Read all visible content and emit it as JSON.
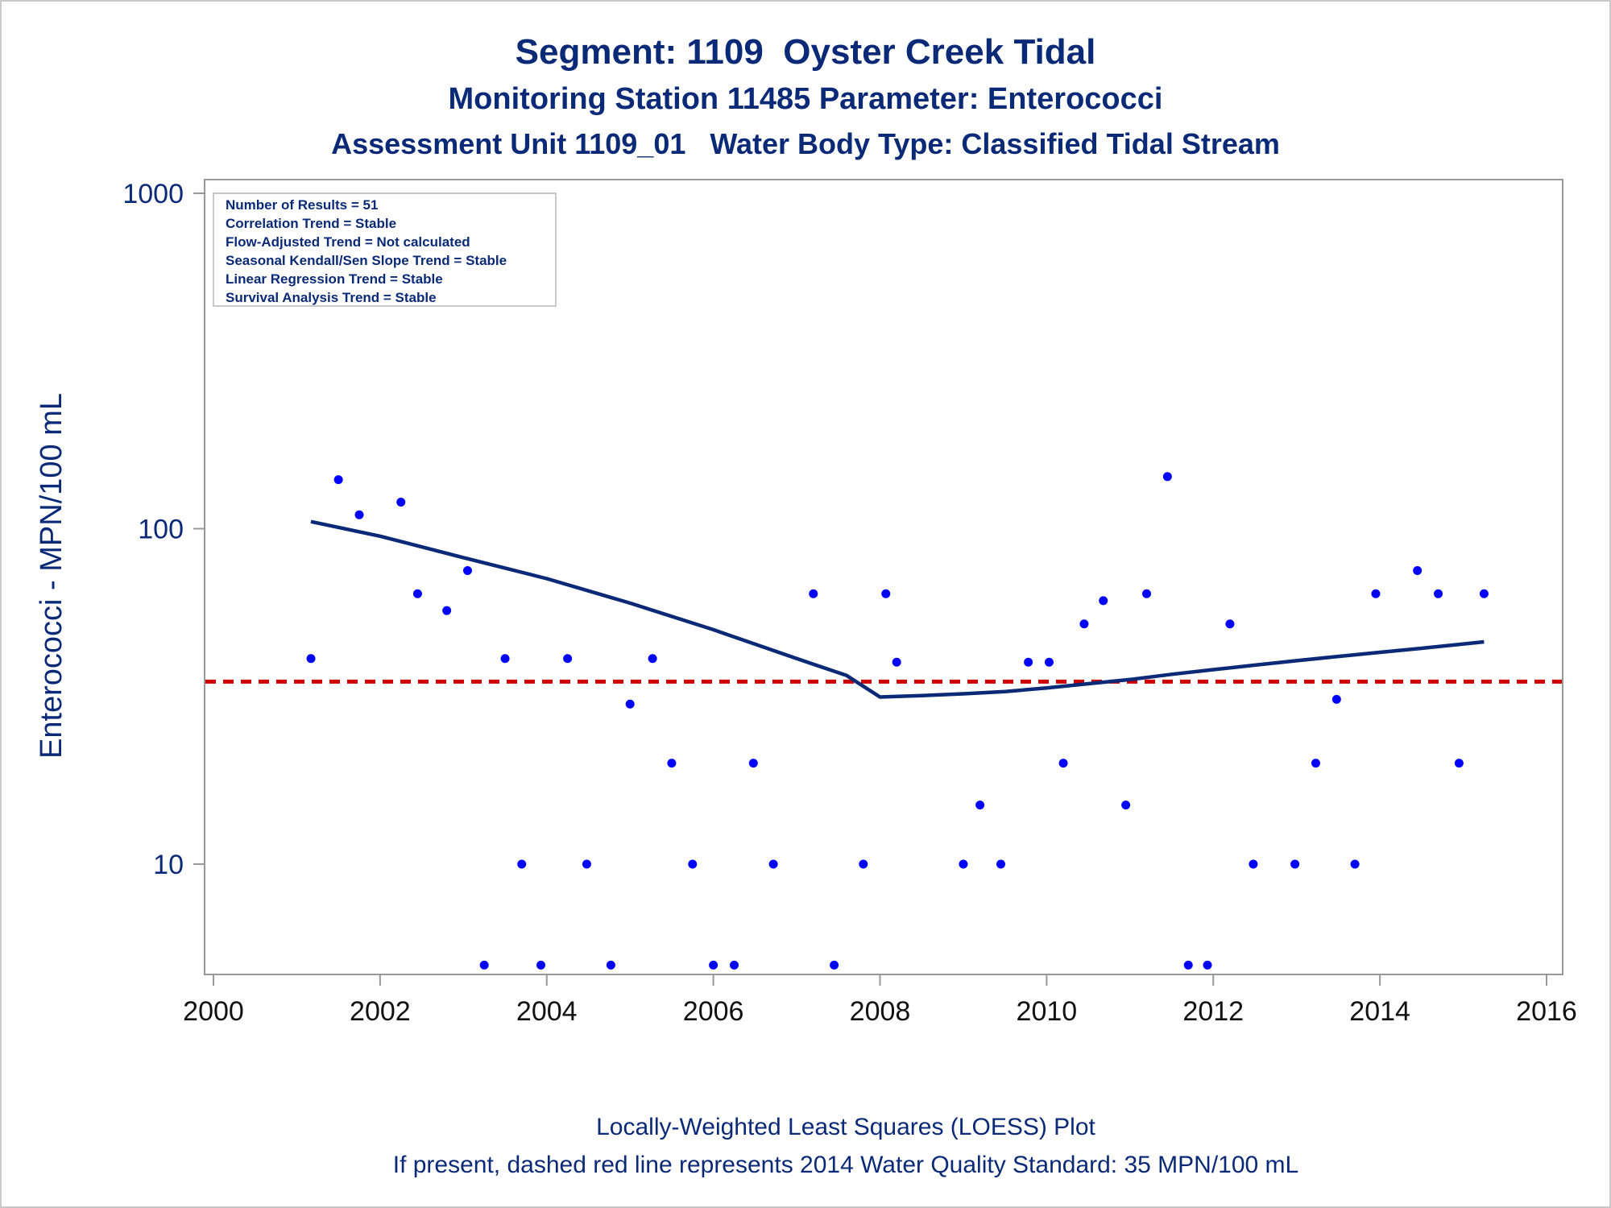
{
  "header": {
    "title": "Segment: 1109  Oyster Creek Tidal",
    "subtitle": "Monitoring Station 11485 Parameter: Enterococci",
    "subtitle2": "Assessment Unit 1109_01   Water Body Type: Classified Tidal Stream"
  },
  "stats_box": {
    "lines": [
      "Number of Results = 51",
      "Correlation Trend = Stable",
      "Flow-Adjusted Trend = Not calculated",
      "Seasonal Kendall/Sen Slope Trend = Stable",
      "Linear Regression Trend = Stable",
      "Survival Analysis Trend = Stable"
    ]
  },
  "footer": {
    "line1": "Locally-Weighted Least Squares (LOESS) Plot",
    "line2": "If present, dashed red line represents 2014 Water Quality Standard: 35 MPN/100 mL"
  },
  "colors": {
    "text": "#0a2a78",
    "points": "#0000ff",
    "loess": "#0a2a78",
    "standard": "#cc0000",
    "axis": "#999999"
  },
  "chart_data": {
    "type": "scatter",
    "title": "Segment: 1109  Oyster Creek Tidal",
    "ylabel": "Enterococci - MPN/100 mL",
    "xlabel": "",
    "y_scale": "log10",
    "xlim": [
      2000,
      2016
    ],
    "ylim": [
      5,
      1000
    ],
    "x_ticks": [
      2000,
      2002,
      2004,
      2006,
      2008,
      2010,
      2012,
      2014,
      2016
    ],
    "y_ticks": [
      10,
      100,
      1000
    ],
    "y_tick_labels": [
      "10",
      "100",
      "1000"
    ],
    "grid": false,
    "series": [
      {
        "type": "scatter",
        "x": [
          2001.17,
          2001.5,
          2001.75,
          2002.25,
          2002.45,
          2002.8,
          2003.05,
          2003.25,
          2003.5,
          2003.7,
          2003.93,
          2004.25,
          2004.48,
          2004.77,
          2005.0,
          2005.27,
          2005.5,
          2005.75,
          2006.0,
          2006.25,
          2006.48,
          2006.72,
          2007.2,
          2007.45,
          2007.8,
          2008.07,
          2008.2,
          2009.0,
          2009.2,
          2009.45,
          2009.78,
          2010.03,
          2010.2,
          2010.45,
          2010.68,
          2010.95,
          2011.2,
          2011.45,
          2011.7,
          2011.93,
          2012.2,
          2012.48,
          2012.98,
          2013.23,
          2013.48,
          2013.7,
          2013.95,
          2014.45,
          2014.7,
          2014.95,
          2015.25
        ],
        "y": [
          41,
          140,
          110,
          120,
          64,
          57,
          75,
          5,
          41,
          10,
          5,
          41,
          10,
          5,
          30,
          41,
          20,
          10,
          5,
          5,
          20,
          10,
          64,
          5,
          10,
          64,
          40,
          10,
          15,
          10,
          40,
          40,
          20,
          52,
          61,
          15,
          64,
          143,
          5,
          5,
          52,
          10,
          10,
          20,
          31,
          10,
          64,
          75,
          64,
          20,
          64
        ]
      },
      {
        "type": "line",
        "x": [
          2001.17,
          2002.0,
          2003.0,
          2004.0,
          2005.0,
          2006.0,
          2007.0,
          2007.6,
          2008.0,
          2008.5,
          2009.0,
          2009.5,
          2010.0,
          2010.5,
          2011.0,
          2011.5,
          2012.0,
          2012.5,
          2013.0,
          2013.5,
          2014.0,
          2014.5,
          2015.25
        ],
        "y": [
          105,
          95,
          82,
          71,
          60,
          50,
          41,
          36.5,
          31.5,
          31.8,
          32.2,
          32.7,
          33.5,
          34.5,
          35.5,
          36.8,
          38,
          39.2,
          40.4,
          41.6,
          42.8,
          44,
          46
        ]
      },
      {
        "type": "hline",
        "y": 35
      }
    ]
  }
}
